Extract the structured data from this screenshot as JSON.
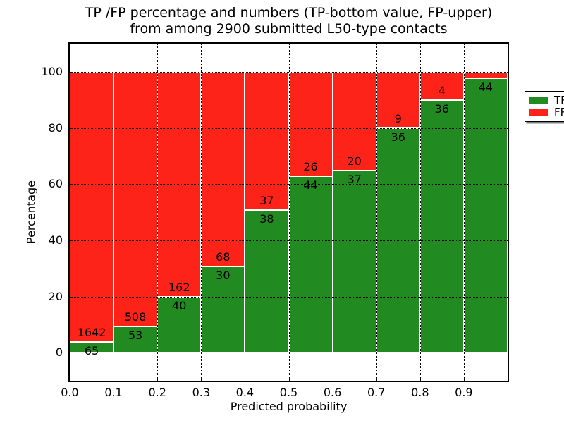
{
  "chart_data": {
    "type": "bar",
    "stacked": true,
    "title": "TP /FP percentage and numbers (TP-bottom value, FP-upper)\nfrom among 2900 submitted L50-type contacts",
    "title_lines": [
      "TP /FP percentage and numbers (TP-bottom value, FP-upper)",
      "from among 2900 submitted L50-type contacts"
    ],
    "xlabel": "Predicted probability",
    "ylabel": "Percentage",
    "xlim": [
      0.0,
      1.0
    ],
    "ylim": [
      -10,
      110
    ],
    "bin_width": 0.1,
    "grid": true,
    "background": "#ffffff",
    "bar_edge_color": "#ffffff",
    "xtick_labels": [
      "0.0",
      "0.1",
      "0.2",
      "0.3",
      "0.4",
      "0.5",
      "0.6",
      "0.7",
      "0.8",
      "0.9"
    ],
    "yticks": [
      0,
      20,
      40,
      60,
      80,
      100
    ],
    "series": [
      {
        "name": "TP",
        "color": "#218a21",
        "counts": [
          65,
          53,
          40,
          30,
          38,
          44,
          37,
          36,
          36,
          44
        ],
        "percent": [
          3.81,
          9.45,
          19.8,
          30.61,
          50.67,
          62.86,
          64.91,
          80.0,
          90.0,
          97.78
        ]
      },
      {
        "name": "FP",
        "color": "#fd2319",
        "counts": [
          1642,
          508,
          162,
          68,
          37,
          26,
          20,
          9,
          4,
          null
        ],
        "percent": [
          96.19,
          90.55,
          80.2,
          69.39,
          49.33,
          37.14,
          35.09,
          20.0,
          10.0,
          2.22
        ]
      }
    ],
    "legend": {
      "position": "upper right",
      "entries": [
        {
          "label": "TP",
          "color": "#218a21"
        },
        {
          "label": "FP",
          "color": "#fd2319"
        }
      ]
    }
  }
}
